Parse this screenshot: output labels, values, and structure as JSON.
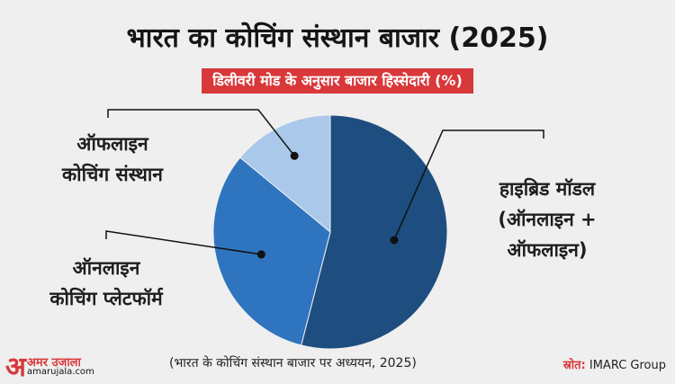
{
  "header": {
    "title": "भारत का कोचिंग संस्थान बाजार (2025)",
    "subtitle": "डिलीवरी मोड के अनुसार बाजार हिस्सेदारी (%)"
  },
  "chart_data": {
    "type": "pie",
    "title": "भारत का कोचिंग संस्थान बाजार (2025)",
    "subtitle": "डिलीवरी मोड के अनुसार बाजार हिस्सेदारी (%)",
    "slices": [
      {
        "label": "हाइब्रिड मॉडल (ऑनलाइन + ऑफलाइन)",
        "value": 54,
        "color": "#1e4e80"
      },
      {
        "label": "ऑनलाइन कोचिंग प्लेटफॉर्म",
        "value": 32,
        "color": "#2f74bf"
      },
      {
        "label": "ऑफलाइन कोचिंग संस्थान",
        "value": 14,
        "color": "#a9c8ea"
      }
    ],
    "legend": "callout-labels"
  },
  "labels": {
    "offline_line1": "ऑफलाइन",
    "offline_line2": "कोचिंग संस्थान",
    "online_line1": "ऑनलाइन",
    "online_line2": "कोचिंग प्लेटफॉर्म",
    "hybrid_line1": "हाइब्रिड मॉडल",
    "hybrid_line2": "(ऑनलाइन +",
    "hybrid_line3": "ऑफलाइन)"
  },
  "footer": {
    "note": "(भारत के कोचिंग संस्थान बाजार पर अध्ययन, 2025)",
    "source_label": "स्रोत:",
    "source_value": " IMARC Group",
    "logo_letter": "अ",
    "logo_name": "अमर उजाला",
    "logo_url": "amarujala.com"
  },
  "colors": {
    "accent_red": "#d8383a",
    "leader_line": "#111111"
  }
}
